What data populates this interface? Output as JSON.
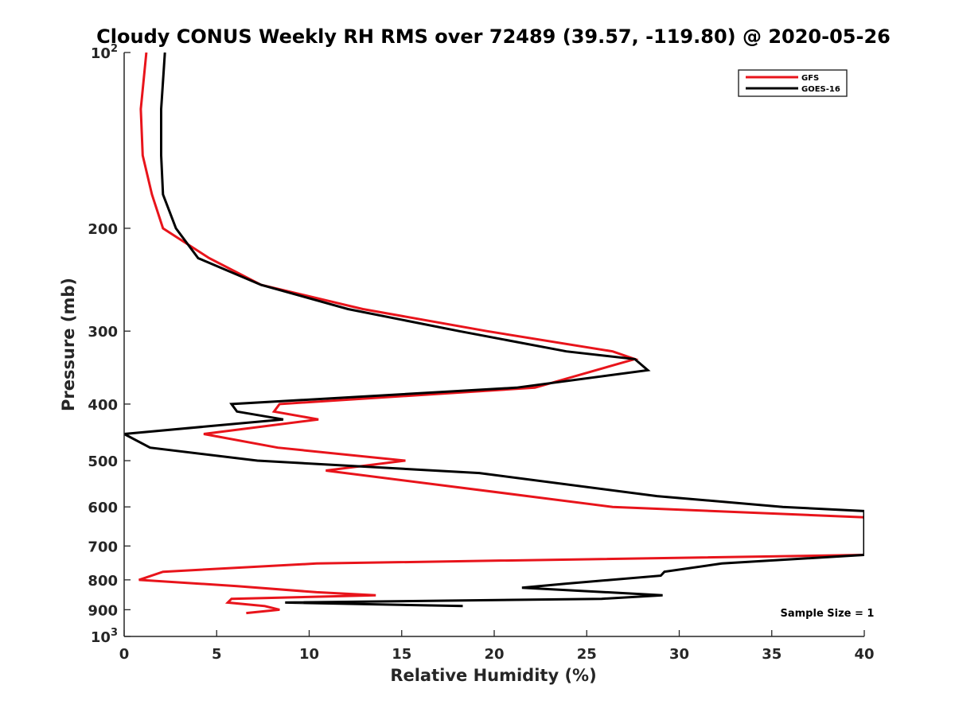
{
  "chart_data": {
    "type": "line",
    "title": "Cloudy CONUS Weekly RH RMS over 72489 (39.57, -119.80) @ 2020-05-26",
    "xlabel": "Relative Humidity (%)",
    "ylabel": "Pressure (mb)",
    "xlim": [
      0,
      40
    ],
    "ylim": [
      100,
      1000
    ],
    "y_scale": "log",
    "y_reversed": true,
    "grid": false,
    "legend_position": "top-right",
    "x_ticks": [
      0,
      5,
      10,
      15,
      20,
      25,
      30,
      35,
      40
    ],
    "x_tick_labels": [
      "0",
      "5",
      "10",
      "15",
      "20",
      "25",
      "30",
      "35",
      "40"
    ],
    "y_ticks": [
      {
        "value": 100,
        "base": "10",
        "exp": "2"
      },
      {
        "value": 200,
        "label": "200"
      },
      {
        "value": 300,
        "label": "300"
      },
      {
        "value": 400,
        "label": "400"
      },
      {
        "value": 500,
        "label": "500"
      },
      {
        "value": 600,
        "label": "600"
      },
      {
        "value": 700,
        "label": "700"
      },
      {
        "value": 800,
        "label": "800"
      },
      {
        "value": 900,
        "label": "900"
      },
      {
        "value": 1000,
        "base": "10",
        "exp": "3"
      }
    ],
    "series": [
      {
        "name": "GFS",
        "color": "#e8141b",
        "points": [
          [
            1.2,
            100
          ],
          [
            0.9,
            125
          ],
          [
            1.0,
            150
          ],
          [
            1.5,
            175
          ],
          [
            2.1,
            200
          ],
          [
            4.6,
            225
          ],
          [
            7.4,
            250
          ],
          [
            12.9,
            275
          ],
          [
            19.6,
            300
          ],
          [
            26.4,
            325
          ],
          [
            27.6,
            335
          ],
          [
            22.2,
            375
          ],
          [
            8.4,
            400
          ],
          [
            8.1,
            412
          ],
          [
            10.5,
            425
          ],
          [
            4.3,
            450
          ],
          [
            8.3,
            475
          ],
          [
            15.2,
            500
          ],
          [
            10.9,
            520
          ],
          [
            21.8,
            575
          ],
          [
            26.4,
            600
          ],
          [
            40,
            625
          ],
          [
            40,
            725
          ],
          [
            10.4,
            750
          ],
          [
            2.1,
            775
          ],
          [
            0.8,
            800
          ],
          [
            6.1,
            820
          ],
          [
            10.4,
            840
          ],
          [
            13.6,
            850
          ],
          [
            5.8,
            862
          ],
          [
            5.6,
            875
          ],
          [
            7.6,
            887
          ],
          [
            8.4,
            900
          ],
          [
            6.6,
            912
          ]
        ]
      },
      {
        "name": "GOES-16",
        "color": "#000000",
        "points": [
          [
            2.2,
            100
          ],
          [
            2.0,
            125
          ],
          [
            2.0,
            150
          ],
          [
            2.1,
            175
          ],
          [
            2.8,
            200
          ],
          [
            4.0,
            225
          ],
          [
            7.4,
            250
          ],
          [
            12.1,
            275
          ],
          [
            18.1,
            300
          ],
          [
            23.9,
            325
          ],
          [
            27.6,
            335
          ],
          [
            28.3,
            350
          ],
          [
            21.2,
            375
          ],
          [
            5.8,
            400
          ],
          [
            6.1,
            412
          ],
          [
            8.6,
            425
          ],
          [
            0.0,
            450
          ],
          [
            1.4,
            475
          ],
          [
            7.2,
            500
          ],
          [
            19.2,
            525
          ],
          [
            28.8,
            575
          ],
          [
            35.6,
            600
          ],
          [
            40,
            610
          ],
          [
            40,
            725
          ],
          [
            32.3,
            750
          ],
          [
            29.2,
            775
          ],
          [
            29.0,
            787
          ],
          [
            23.9,
            812
          ],
          [
            21.5,
            825
          ],
          [
            29.1,
            850
          ],
          [
            25.8,
            862
          ],
          [
            8.7,
            875
          ],
          [
            18.3,
            887
          ]
        ]
      }
    ],
    "annotations": [
      {
        "text": "Sample Size = 1",
        "x": 38.0,
        "y": 910
      }
    ]
  }
}
